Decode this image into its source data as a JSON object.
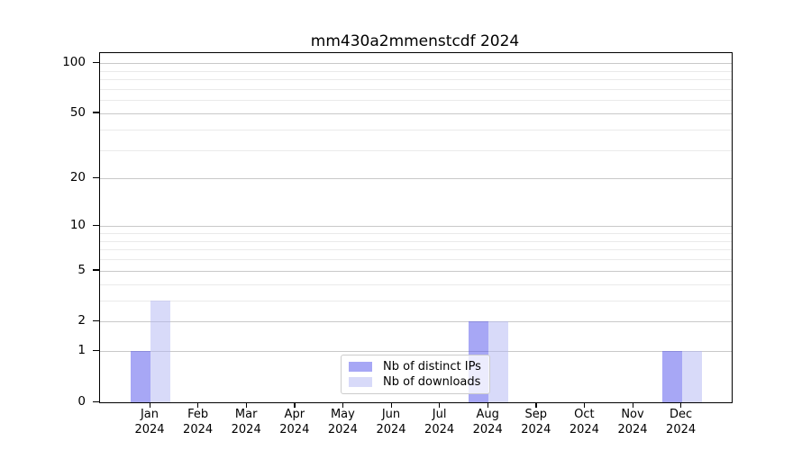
{
  "chart_data": {
    "type": "bar",
    "title": "mm430a2mmenstcdf 2024",
    "categories": [
      {
        "month": "Jan",
        "year": "2024"
      },
      {
        "month": "Feb",
        "year": "2024"
      },
      {
        "month": "Mar",
        "year": "2024"
      },
      {
        "month": "Apr",
        "year": "2024"
      },
      {
        "month": "May",
        "year": "2024"
      },
      {
        "month": "Jun",
        "year": "2024"
      },
      {
        "month": "Jul",
        "year": "2024"
      },
      {
        "month": "Aug",
        "year": "2024"
      },
      {
        "month": "Sep",
        "year": "2024"
      },
      {
        "month": "Oct",
        "year": "2024"
      },
      {
        "month": "Nov",
        "year": "2024"
      },
      {
        "month": "Dec",
        "year": "2024"
      }
    ],
    "series": [
      {
        "name": "Nb of distinct IPs",
        "color": "rgba(80,80,235,0.5)",
        "values": [
          1,
          0,
          0,
          0,
          0,
          0,
          0,
          2,
          0,
          0,
          0,
          1
        ]
      },
      {
        "name": "Nb of downloads",
        "color": "rgba(178,182,244,0.5)",
        "values": [
          3,
          0,
          0,
          0,
          0,
          0,
          0,
          2,
          0,
          0,
          0,
          1
        ]
      }
    ],
    "yscale": "log10(1+y)",
    "y_axis": {
      "major_ticks": [
        0,
        1,
        2,
        5,
        10,
        20,
        50,
        100
      ],
      "minor_gridlines": [
        3,
        4,
        6,
        7,
        8,
        9,
        30,
        40,
        60,
        70,
        80,
        90
      ],
      "top_value": 113
    },
    "xlabel": "",
    "ylabel": "",
    "grid": true,
    "legend_position": "lower center (inside plot)",
    "colors": {
      "grid_major": "#c9c9c9",
      "grid_minor": "#eaeaea",
      "axis": "#000000",
      "text": "#000000",
      "legend_border": "#cccccc",
      "legend_background": "rgba(255,255,255,0.78)"
    }
  }
}
